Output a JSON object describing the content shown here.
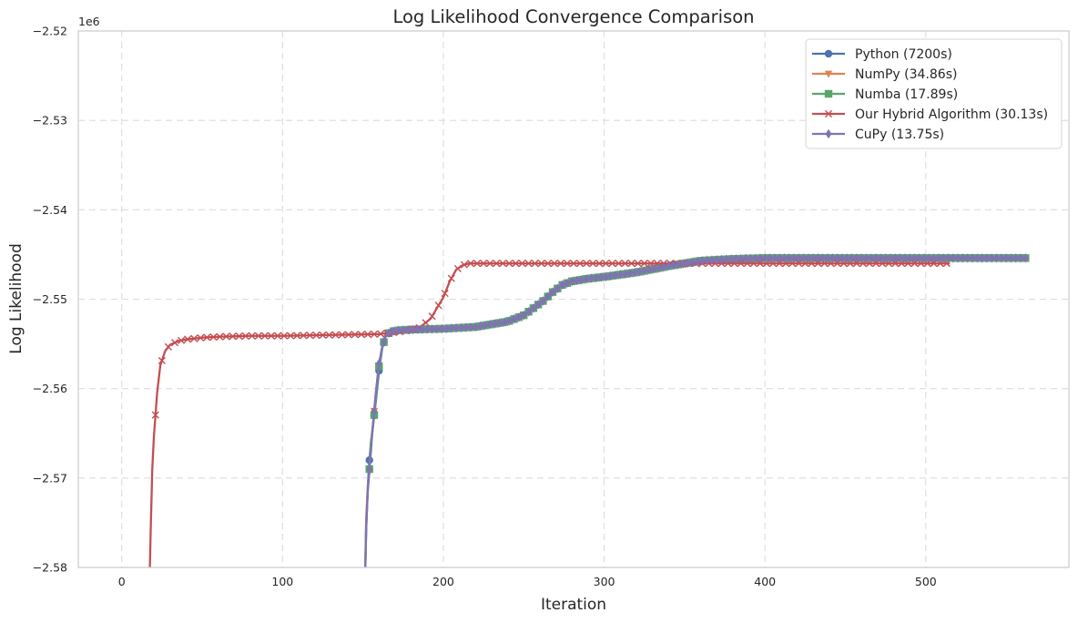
{
  "chart_data": {
    "type": "line",
    "title": "Log Likelihood Convergence Comparison",
    "xlabel": "Iteration",
    "ylabel": "Log Likelihood",
    "y_offset_label": "1e6",
    "xlim": [
      -27,
      589
    ],
    "ylim": [
      -2.58,
      -2.52
    ],
    "x_ticks": [
      0,
      100,
      200,
      300,
      400,
      500
    ],
    "x_tick_labels": [
      "0",
      "100",
      "200",
      "300",
      "400",
      "500"
    ],
    "y_ticks": [
      -2.58,
      -2.57,
      -2.56,
      -2.55,
      -2.54,
      -2.53,
      -2.52
    ],
    "y_tick_labels": [
      "−2.58",
      "−2.57",
      "−2.56",
      "−2.55",
      "−2.54",
      "−2.53",
      "−2.52"
    ],
    "grid": true,
    "legend_position": "top-right",
    "series": [
      {
        "name": "Python (7200s)",
        "color": "#4c72b0",
        "marker": "circle",
        "x_start": 151,
        "x_end": 562,
        "x_step": 3,
        "points": [
          [
            151,
            -2.584
          ],
          [
            152,
            -2.576
          ],
          [
            153,
            -2.571
          ],
          [
            154,
            -2.568
          ],
          [
            155,
            -2.566
          ],
          [
            156,
            -2.5645
          ],
          [
            158,
            -2.5615
          ],
          [
            160,
            -2.558
          ],
          [
            162,
            -2.5555
          ],
          [
            164,
            -2.5542
          ],
          [
            166,
            -2.5538
          ],
          [
            170,
            -2.5535
          ],
          [
            180,
            -2.5534
          ],
          [
            200,
            -2.5533
          ],
          [
            220,
            -2.5531
          ],
          [
            240,
            -2.5525
          ],
          [
            250,
            -2.5518
          ],
          [
            256,
            -2.551
          ],
          [
            262,
            -2.5502
          ],
          [
            268,
            -2.5492
          ],
          [
            274,
            -2.5484
          ],
          [
            280,
            -2.548
          ],
          [
            290,
            -2.5477
          ],
          [
            300,
            -2.5475
          ],
          [
            320,
            -2.547
          ],
          [
            340,
            -2.5463
          ],
          [
            360,
            -2.5457
          ],
          [
            380,
            -2.5455
          ],
          [
            400,
            -2.5454
          ],
          [
            450,
            -2.5454
          ],
          [
            500,
            -2.5454
          ],
          [
            562,
            -2.5454
          ]
        ]
      },
      {
        "name": "NumPy (34.86s)",
        "color": "#dd8452",
        "marker": "triangle-down",
        "x_start": 151,
        "x_end": 562,
        "x_step": 3,
        "points": [
          [
            151,
            -2.584
          ],
          [
            152,
            -2.5745
          ],
          [
            153,
            -2.571
          ],
          [
            154,
            -2.5693
          ],
          [
            155,
            -2.566
          ],
          [
            156,
            -2.5645
          ],
          [
            158,
            -2.5605
          ],
          [
            160,
            -2.5575
          ],
          [
            162,
            -2.5553
          ],
          [
            164,
            -2.5542
          ],
          [
            166,
            -2.5538
          ],
          [
            170,
            -2.5535
          ],
          [
            180,
            -2.5534
          ],
          [
            200,
            -2.5533
          ],
          [
            220,
            -2.5531
          ],
          [
            240,
            -2.5525
          ],
          [
            250,
            -2.5518
          ],
          [
            256,
            -2.551
          ],
          [
            262,
            -2.5502
          ],
          [
            268,
            -2.5492
          ],
          [
            274,
            -2.5484
          ],
          [
            280,
            -2.548
          ],
          [
            290,
            -2.5477
          ],
          [
            300,
            -2.5475
          ],
          [
            320,
            -2.547
          ],
          [
            340,
            -2.5463
          ],
          [
            360,
            -2.5457
          ],
          [
            380,
            -2.5455
          ],
          [
            400,
            -2.5454
          ],
          [
            450,
            -2.5454
          ],
          [
            500,
            -2.5454
          ],
          [
            562,
            -2.5454
          ]
        ]
      },
      {
        "name": "Numba (17.89s)",
        "color": "#55a868",
        "marker": "square",
        "x_start": 151,
        "x_end": 562,
        "x_step": 3,
        "points": [
          [
            151,
            -2.584
          ],
          [
            152,
            -2.5755
          ],
          [
            153,
            -2.5715
          ],
          [
            154,
            -2.569
          ],
          [
            155,
            -2.566
          ],
          [
            156,
            -2.5647
          ],
          [
            158,
            -2.5612
          ],
          [
            159,
            -2.5589
          ],
          [
            160,
            -2.5575
          ],
          [
            162,
            -2.5554
          ],
          [
            164,
            -2.5542
          ],
          [
            166,
            -2.5538
          ],
          [
            170,
            -2.5535
          ],
          [
            180,
            -2.5534
          ],
          [
            200,
            -2.5533
          ],
          [
            220,
            -2.5531
          ],
          [
            240,
            -2.5525
          ],
          [
            250,
            -2.5518
          ],
          [
            256,
            -2.551
          ],
          [
            262,
            -2.5502
          ],
          [
            268,
            -2.5492
          ],
          [
            274,
            -2.5484
          ],
          [
            280,
            -2.548
          ],
          [
            290,
            -2.5477
          ],
          [
            300,
            -2.5475
          ],
          [
            320,
            -2.547
          ],
          [
            340,
            -2.5463
          ],
          [
            360,
            -2.5457
          ],
          [
            380,
            -2.5455
          ],
          [
            400,
            -2.5454
          ],
          [
            450,
            -2.5454
          ],
          [
            500,
            -2.5454
          ],
          [
            562,
            -2.5454
          ]
        ]
      },
      {
        "name": "Our Hybrid Algorithm (30.13s)",
        "color": "#c44e52",
        "marker": "x",
        "x_start": 17,
        "x_end": 515,
        "x_step": 4,
        "points": [
          [
            17,
            -2.584
          ],
          [
            18,
            -2.576
          ],
          [
            19,
            -2.569
          ],
          [
            20,
            -2.5654
          ],
          [
            22,
            -2.5605
          ],
          [
            24,
            -2.5574
          ],
          [
            27,
            -2.5558
          ],
          [
            30,
            -2.5551
          ],
          [
            35,
            -2.5547
          ],
          [
            40,
            -2.5545
          ],
          [
            50,
            -2.5543
          ],
          [
            60,
            -2.5542
          ],
          [
            80,
            -2.5541
          ],
          [
            100,
            -2.5541
          ],
          [
            130,
            -2.554
          ],
          [
            160,
            -2.5539
          ],
          [
            175,
            -2.5536
          ],
          [
            185,
            -2.5532
          ],
          [
            192,
            -2.5522
          ],
          [
            196,
            -2.551
          ],
          [
            200,
            -2.5498
          ],
          [
            204,
            -2.548
          ],
          [
            208,
            -2.5467
          ],
          [
            212,
            -2.5462
          ],
          [
            216,
            -2.546
          ],
          [
            230,
            -2.546
          ],
          [
            300,
            -2.546
          ],
          [
            360,
            -2.546
          ],
          [
            420,
            -2.546
          ],
          [
            480,
            -2.546
          ],
          [
            515,
            -2.546
          ]
        ]
      },
      {
        "name": "CuPy (13.75s)",
        "color": "#8172b3",
        "marker": "diamond",
        "x_start": 151,
        "x_end": 562,
        "x_step": 3,
        "points": [
          [
            151,
            -2.584
          ],
          [
            152,
            -2.5755
          ],
          [
            153,
            -2.5715
          ],
          [
            154,
            -2.569
          ],
          [
            155,
            -2.567
          ],
          [
            156,
            -2.5645
          ],
          [
            158,
            -2.5605
          ],
          [
            160,
            -2.5572
          ],
          [
            162,
            -2.5553
          ],
          [
            164,
            -2.5542
          ],
          [
            166,
            -2.5538
          ],
          [
            170,
            -2.5535
          ],
          [
            180,
            -2.5534
          ],
          [
            200,
            -2.5533
          ],
          [
            220,
            -2.5531
          ],
          [
            240,
            -2.5525
          ],
          [
            250,
            -2.5518
          ],
          [
            256,
            -2.551
          ],
          [
            262,
            -2.5502
          ],
          [
            268,
            -2.5492
          ],
          [
            274,
            -2.5484
          ],
          [
            280,
            -2.548
          ],
          [
            290,
            -2.5477
          ],
          [
            300,
            -2.5475
          ],
          [
            320,
            -2.547
          ],
          [
            340,
            -2.5463
          ],
          [
            360,
            -2.5457
          ],
          [
            380,
            -2.5455
          ],
          [
            400,
            -2.5454
          ],
          [
            450,
            -2.5454
          ],
          [
            500,
            -2.5454
          ],
          [
            562,
            -2.5454
          ]
        ]
      }
    ]
  }
}
